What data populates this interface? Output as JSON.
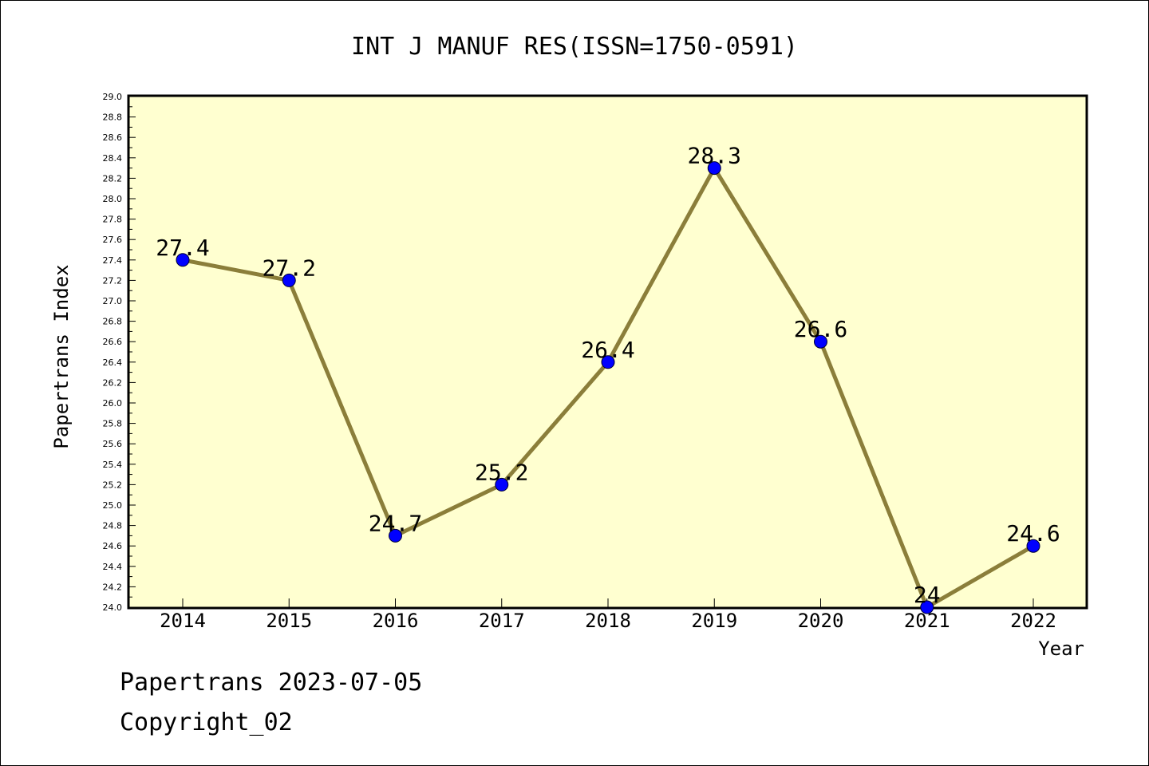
{
  "chart_data": {
    "type": "line",
    "title": "INT J MANUF RES(ISSN=1750-0591)",
    "xlabel": "Year",
    "ylabel": "Papertrans Index",
    "categories": [
      "2014",
      "2015",
      "2016",
      "2017",
      "2018",
      "2019",
      "2020",
      "2021",
      "2022"
    ],
    "values": [
      27.4,
      27.2,
      24.7,
      25.2,
      26.4,
      28.3,
      26.6,
      24,
      24.6
    ],
    "data_labels": [
      "27.4",
      "27.2",
      "24.7",
      "25.2",
      "26.4",
      "28.3",
      "26.6",
      "24",
      "24.6"
    ],
    "ylim": [
      24.0,
      29.0
    ],
    "yticks": [
      "24.0",
      "24.2",
      "24.4",
      "24.6",
      "24.8",
      "25.0",
      "25.2",
      "25.4",
      "25.6",
      "25.8",
      "26.0",
      "26.2",
      "26.4",
      "26.6",
      "26.8",
      "27.0",
      "27.2",
      "27.4",
      "27.6",
      "27.8",
      "28.0",
      "28.2",
      "28.4",
      "28.6",
      "28.8",
      "29.0"
    ],
    "grid": false,
    "colors": {
      "plot_background": "#ffffd0",
      "line": "#8b7e3a",
      "marker": "#0000ff",
      "frame": "#000000"
    }
  },
  "footer": {
    "line1": "Papertrans 2023-07-05",
    "line2": "Copyright_02"
  }
}
